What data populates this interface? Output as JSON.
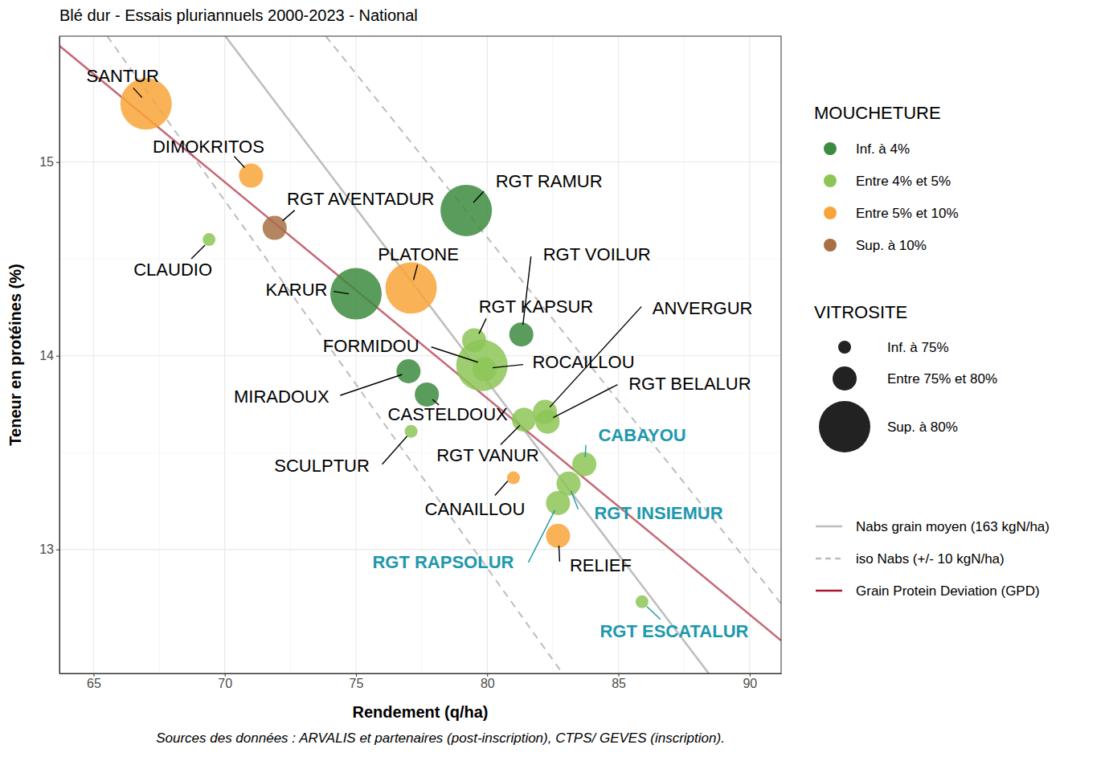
{
  "chart_data": {
    "type": "scatter",
    "title": "Blé dur - Essais pluriannuels 2000-2023 - National",
    "x_label": "Rendement (q/ha)",
    "y_label": "Teneur en protéines (%)",
    "caption": "Sources des données : ARVALIS et partenaires (post-inscription), CTPS/ GEVES (inscription).",
    "xlim": [
      63.7,
      91.2
    ],
    "xticks": [
      65,
      70,
      75,
      80,
      85,
      90
    ],
    "ylim": [
      12.36,
      15.65
    ],
    "yticks": [
      13,
      14,
      15
    ],
    "grid": true,
    "legend": "right",
    "color_legend_title": "MOUCHETURE",
    "size_legend_title": "VITROSITE",
    "size_classes": [
      "Inf. à 75%",
      "Entre 75% et 80%",
      "Sup. à 80%"
    ],
    "highlighted": [
      "CABAYOU",
      "RGT INSIEMUR",
      "RGT RAPSOLUR",
      "RGT ESCATALUR"
    ],
    "series": [
      {
        "name": "Inf. à 4%",
        "color": "#3d8b40",
        "labels": [
          "KARUR",
          "RGT RAMUR",
          "RGT VOILUR",
          "MIRADOUX",
          "CASTELDOUX"
        ],
        "x": [
          75.0,
          79.2,
          81.3,
          77.0,
          77.7
        ],
        "values": [
          14.32,
          14.75,
          14.11,
          13.92,
          13.8
        ],
        "vitrosite": [
          "Sup. à 80%",
          "Sup. à 80%",
          "Entre 75% et 80%",
          "Entre 75% et 80%",
          "Entre 75% et 80%"
        ]
      },
      {
        "name": "Entre 4% et 5%",
        "color": "#8dc657",
        "labels": [
          "CLAUDIO",
          "RGT KAPSUR",
          "FORMIDOU",
          "ROCAILLOU",
          "ANVERGUR",
          "RGT BELALUR",
          "RGT VANUR",
          "SCULPTUR",
          "CABAYOU",
          "RGT INSIEMUR",
          "RGT RAPSOLUR",
          "RGT ESCATALUR"
        ],
        "x": [
          69.4,
          79.5,
          79.8,
          79.9,
          82.2,
          82.3,
          81.4,
          77.1,
          83.7,
          83.1,
          82.7,
          85.9
        ],
        "values": [
          14.6,
          14.08,
          13.95,
          13.93,
          13.71,
          13.66,
          13.67,
          13.61,
          13.44,
          13.34,
          13.24,
          12.73
        ],
        "vitrosite": [
          "Inf. à 75%",
          "Entre 75% et 80%",
          "Sup. à 80%",
          "Entre 75% et 80%",
          "Entre 75% et 80%",
          "Entre 75% et 80%",
          "Entre 75% et 80%",
          "Inf. à 75%",
          "Entre 75% et 80%",
          "Entre 75% et 80%",
          "Entre 75% et 80%",
          "Inf. à 75%"
        ]
      },
      {
        "name": "Entre 5% et 10%",
        "color": "#f9a43a",
        "labels": [
          "SANTUR",
          "DIMOKRITOS",
          "PLATONE",
          "CANAILLOU",
          "RELIEF"
        ],
        "x": [
          67.0,
          71.0,
          77.1,
          81.0,
          82.7
        ],
        "values": [
          15.3,
          14.93,
          14.35,
          13.37,
          13.07
        ],
        "vitrosite": [
          "Sup. à 80%",
          "Entre 75% et 80%",
          "Sup. à 80%",
          "Inf. à 75%",
          "Entre 75% et 80%"
        ]
      },
      {
        "name": "Sup. à 10%",
        "color": "#a86f45",
        "labels": [
          "RGT AVENTADUR"
        ],
        "x": [
          71.9
        ],
        "values": [
          14.66
        ],
        "vitrosite": [
          "Entre 75% et 80%"
        ]
      }
    ],
    "reference_lines": [
      {
        "name": "Nabs grain moyen (163 kgN/ha)",
        "color": "#bdbdbd",
        "line_style": "solid",
        "x": [
          70.02,
          88.44
        ],
        "values": [
          15.65,
          12.36
        ]
      },
      {
        "name": "iso Nabs (+/- 10 kgN/ha)",
        "color": "#bdbdbd",
        "line_style": "dashed",
        "x": [
          65.52,
          82.87,
          null,
          73.85,
          91.2
        ],
        "values": [
          15.65,
          12.36,
          null,
          15.65,
          12.72
        ]
      },
      {
        "name": "Grain Protein Deviation (GPD)",
        "color": "#a8182e",
        "line_style": "solid",
        "x": [
          63.7,
          91.2
        ],
        "values": [
          15.6,
          12.53
        ]
      }
    ]
  }
}
